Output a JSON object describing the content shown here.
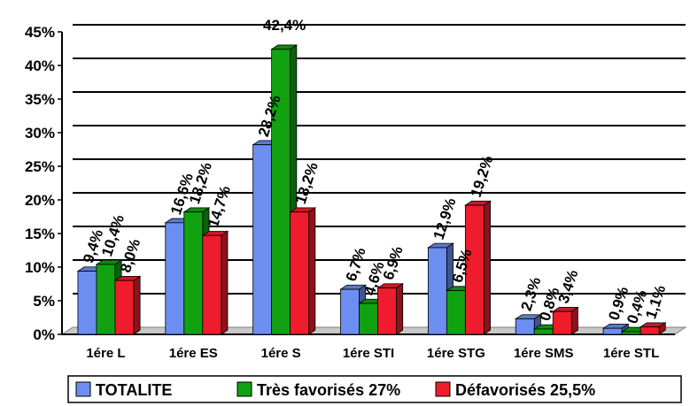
{
  "chart_data": {
    "type": "bar",
    "title": "",
    "xlabel": "",
    "ylabel": "",
    "ylim": [
      0,
      45
    ],
    "yticks": [
      0,
      5,
      10,
      15,
      20,
      25,
      30,
      35,
      40,
      45
    ],
    "ytick_labels": [
      "0%",
      "5%",
      "10%",
      "15%",
      "20%",
      "25%",
      "30%",
      "35%",
      "40%",
      "45%"
    ],
    "grid": true,
    "legend_position": "bottom",
    "categories": [
      "1ére L",
      "1ére ES",
      "1ére S",
      "1ére STI",
      "1ére STG",
      "1ére SMS",
      "1ére STL"
    ],
    "series": [
      {
        "name": "TOTALITE",
        "color": "#6b8ef0",
        "values": [
          9.4,
          16.6,
          28.2,
          6.7,
          12.9,
          2.3,
          0.9
        ],
        "labels": [
          "9,4%",
          "16,6%",
          "28,2%",
          "6,7%",
          "12,9%",
          "2,3%",
          "0,9%"
        ]
      },
      {
        "name": "Très favorisés 27%",
        "color": "#11a211",
        "values": [
          10.4,
          18.2,
          42.4,
          4.6,
          6.5,
          0.8,
          0.4
        ],
        "labels": [
          "10,4%",
          "18,2%",
          "42,4%",
          "4,6%",
          "6,5%",
          "0,8%",
          "0,4%"
        ]
      },
      {
        "name": "Défavorisés 25,5%",
        "color": "#ee1c2c",
        "values": [
          8.0,
          14.7,
          18.2,
          6.9,
          19.2,
          3.4,
          1.1
        ],
        "labels": [
          "8,0%",
          "14,7%",
          "18,2%",
          "6,9%",
          "19,2%",
          "3,4%",
          "1,1%"
        ]
      }
    ]
  }
}
